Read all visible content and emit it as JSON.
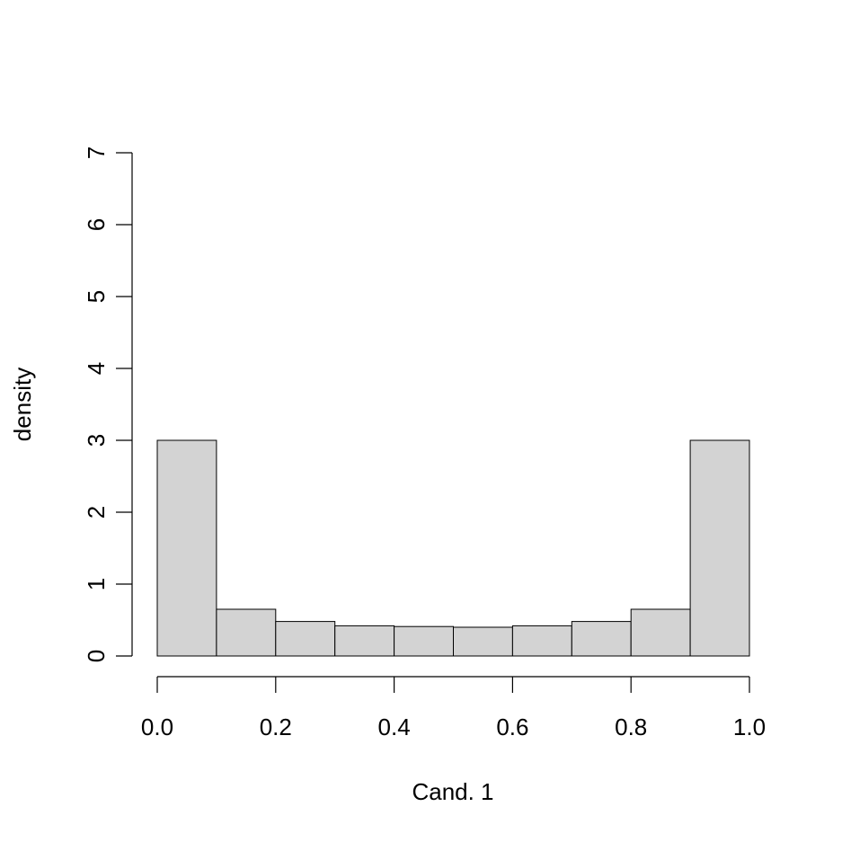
{
  "chart_data": {
    "type": "bar",
    "title": "",
    "xlabel": "Cand. 1",
    "ylabel": "density",
    "bins": [
      {
        "from": 0.0,
        "to": 0.1,
        "value": 3.0
      },
      {
        "from": 0.1,
        "to": 0.2,
        "value": 0.65
      },
      {
        "from": 0.2,
        "to": 0.3,
        "value": 0.48
      },
      {
        "from": 0.3,
        "to": 0.4,
        "value": 0.42
      },
      {
        "from": 0.4,
        "to": 0.5,
        "value": 0.41
      },
      {
        "from": 0.5,
        "to": 0.6,
        "value": 0.4
      },
      {
        "from": 0.6,
        "to": 0.7,
        "value": 0.42
      },
      {
        "from": 0.7,
        "to": 0.8,
        "value": 0.48
      },
      {
        "from": 0.8,
        "to": 0.9,
        "value": 0.65
      },
      {
        "from": 0.9,
        "to": 1.0,
        "value": 3.0
      }
    ],
    "xlim": [
      0.0,
      1.0
    ],
    "ylim": [
      0,
      7
    ],
    "xticks": [
      "0.0",
      "0.2",
      "0.4",
      "0.6",
      "0.8",
      "1.0"
    ],
    "yticks": [
      "0",
      "1",
      "2",
      "3",
      "4",
      "5",
      "6",
      "7"
    ],
    "grid": false,
    "colors": {
      "bar_fill": "#d3d3d3",
      "bar_stroke": "#000000",
      "axis": "#000000"
    }
  }
}
